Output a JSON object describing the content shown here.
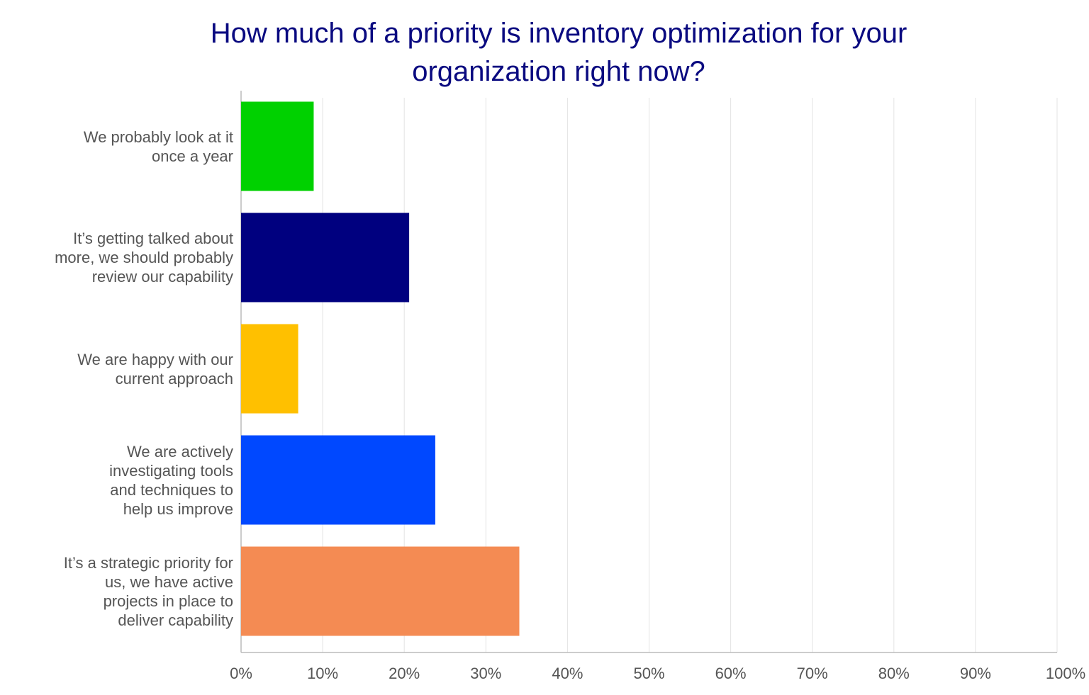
{
  "chart_data": {
    "type": "barh",
    "title": "How much of a priority is inventory optimization for your organization right now?",
    "categories": [
      "We probably look at it once a year",
      "It’s getting talked about more, we should probably review our capability",
      "We are happy with our current approach",
      "We are actively investigating tools and techniques to help us improve",
      "It’s a strategic priority for us, we have active projects in place to deliver capability"
    ],
    "values": [
      8.9,
      20.6,
      7,
      23.8,
      34.1
    ],
    "colors": [
      "#00d100",
      "#00007f",
      "#ffc000",
      "#0048ff",
      "#f48b53"
    ],
    "xlim": [
      0,
      100
    ],
    "xticks": [
      {
        "value": 0,
        "label": "0%"
      },
      {
        "value": 10,
        "label": "10%"
      },
      {
        "value": 20,
        "label": "20%"
      },
      {
        "value": 30,
        "label": "30%"
      },
      {
        "value": 40,
        "label": "40%"
      },
      {
        "value": 50,
        "label": "50%"
      },
      {
        "value": 60,
        "label": "60%"
      },
      {
        "value": 70,
        "label": "70%"
      },
      {
        "value": 80,
        "label": "80%"
      },
      {
        "value": 90,
        "label": "90%"
      },
      {
        "value": 100,
        "label": "100%"
      }
    ],
    "grid": true
  }
}
